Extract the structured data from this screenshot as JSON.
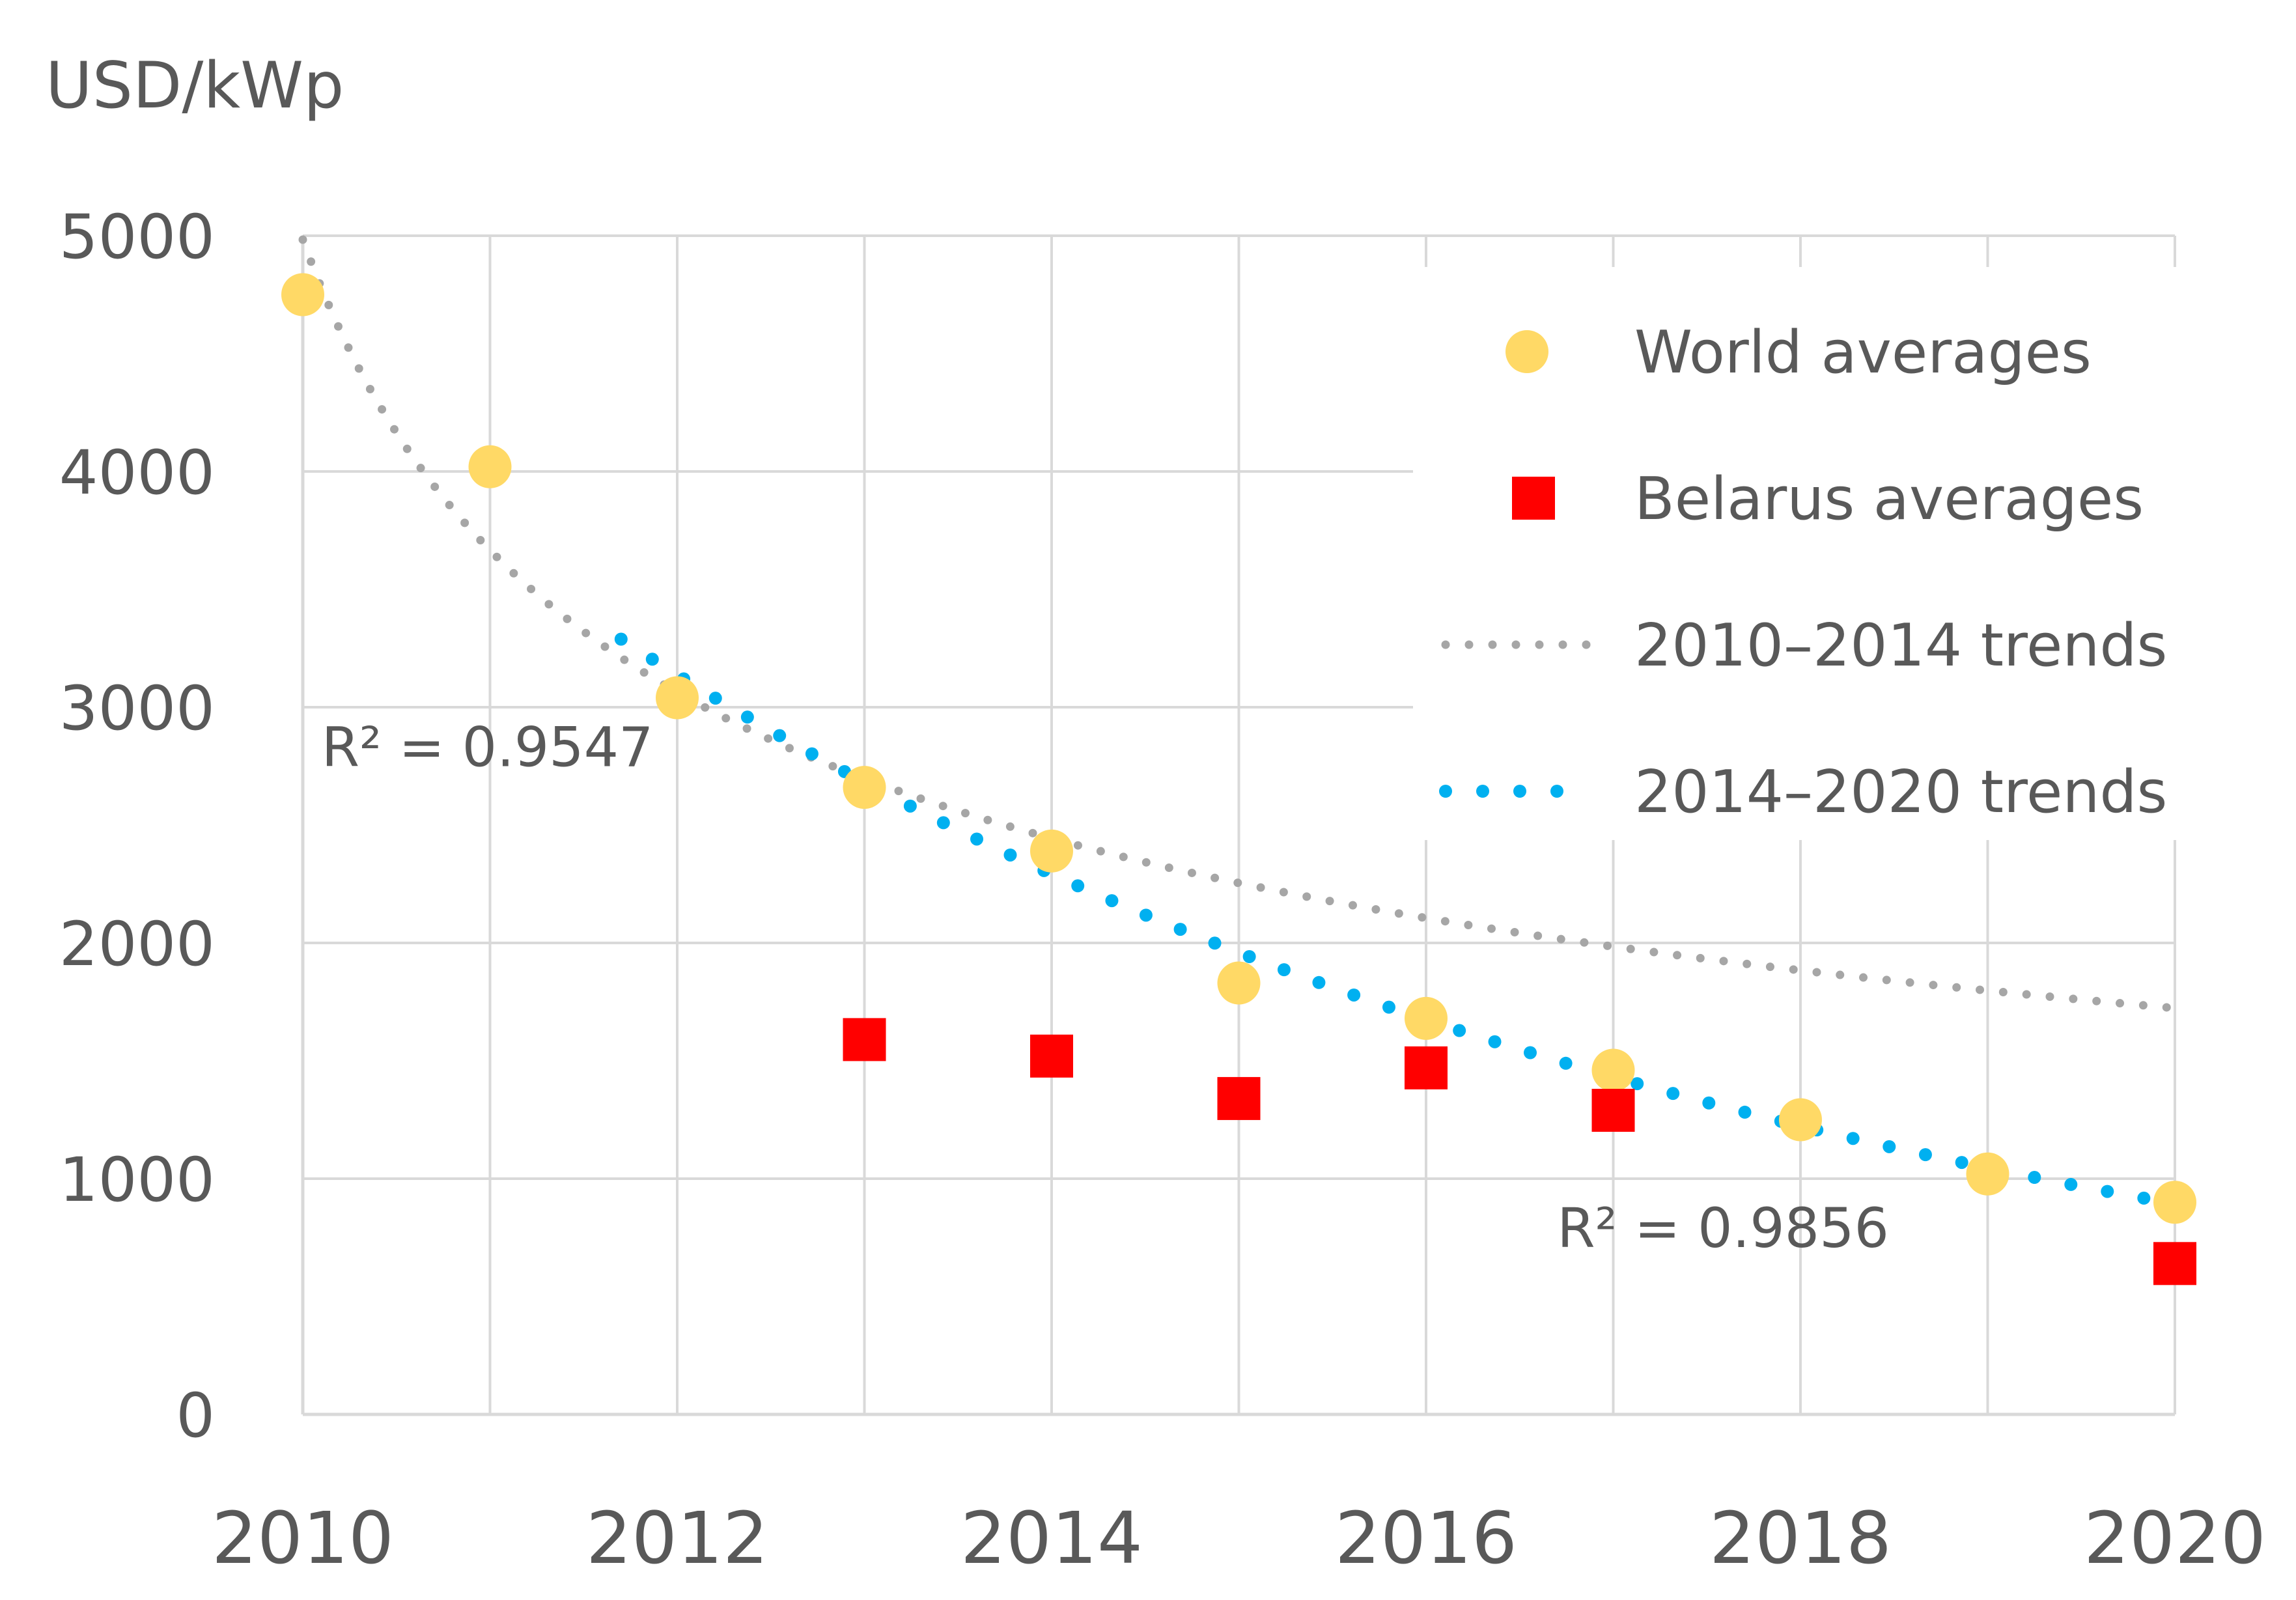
{
  "chart_data": {
    "type": "scatter",
    "title": "",
    "xlabel": "",
    "ylabel": "USD/kWp",
    "xlim": [
      2010,
      2020
    ],
    "ylim": [
      0,
      5000
    ],
    "x_ticks": [
      "2010",
      "2012",
      "2014",
      "2016",
      "2018",
      "2020"
    ],
    "y_ticks": [
      "0",
      "1000",
      "2000",
      "3000",
      "4000",
      "5000"
    ],
    "grid": true,
    "legend_position": "top-right",
    "series": [
      {
        "name": "World averages",
        "kind": "circle",
        "color": "#FFD966",
        "x": [
          2010,
          2011,
          2012,
          2013,
          2014,
          2015,
          2016,
          2017,
          2018,
          2019,
          2020
        ],
        "values": [
          4750,
          4020,
          3040,
          2660,
          2390,
          1830,
          1680,
          1460,
          1250,
          1020,
          900
        ]
      },
      {
        "name": "Belarus averages",
        "kind": "square",
        "color": "#FF0000",
        "x": [
          2013,
          2014,
          2015,
          2016,
          2017,
          2020
        ],
        "values": [
          1590,
          1520,
          1340,
          1470,
          1290,
          640
        ]
      },
      {
        "name": "2010–2014 trends",
        "kind": "trend",
        "color": "#A6A6A6",
        "fit": "power",
        "x_range": [
          2010,
          2020
        ],
        "r2_label": "R² = 0.9547",
        "r2_anchor": [
          2010.1,
          2750
        ]
      },
      {
        "name": "2014–2020 trends",
        "kind": "trend",
        "color": "#00B0F0",
        "fit": "exponential",
        "x_range": [
          2011.7,
          2020
        ],
        "r2_label": "R² = 0.9856",
        "r2_anchor": [
          2016.7,
          710
        ]
      }
    ]
  }
}
